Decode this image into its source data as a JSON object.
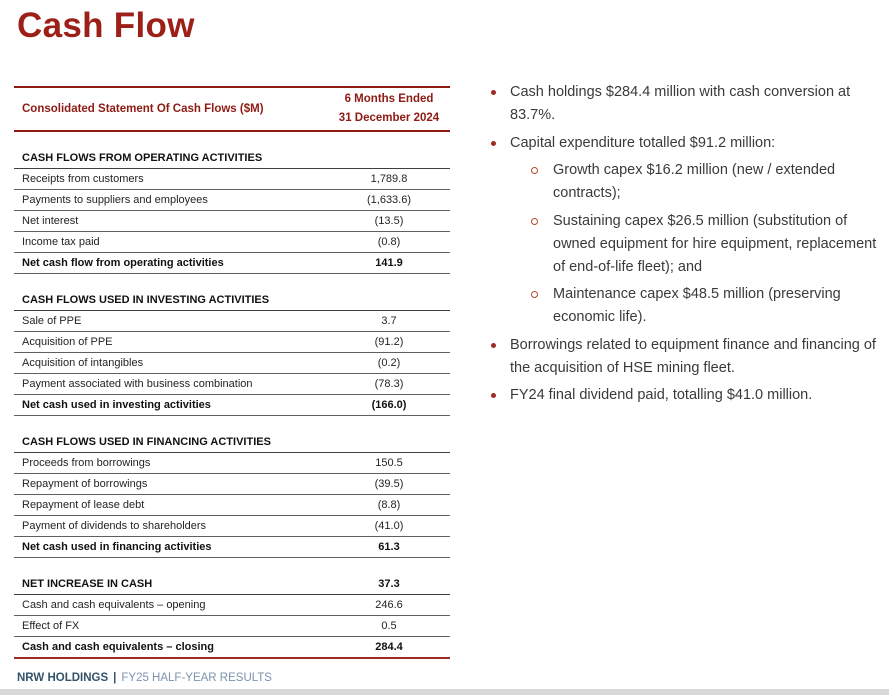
{
  "slide": {
    "title": "Cash Flow"
  },
  "table": {
    "header": {
      "label": "Consolidated Statement Of Cash Flows ($M)",
      "period_line1": "6 Months Ended",
      "period_line2": "31 December 2024"
    },
    "sections": [
      {
        "heading": "CASH FLOWS FROM OPERATING ACTIVITIES",
        "heading_value": "",
        "rows": [
          {
            "label": "Receipts from customers",
            "value": "1,789.8",
            "bold": false
          },
          {
            "label": "Payments to suppliers and employees",
            "value": "(1,633.6)",
            "bold": false
          },
          {
            "label": "Net interest",
            "value": "(13.5)",
            "bold": false
          },
          {
            "label": "Income tax paid",
            "value": "(0.8)",
            "bold": false
          },
          {
            "label": "Net cash flow from operating activities",
            "value": "141.9",
            "bold": true
          }
        ]
      },
      {
        "heading": "CASH FLOWS USED IN INVESTING ACTIVITIES",
        "heading_value": "",
        "rows": [
          {
            "label": "Sale of PPE",
            "value": "3.7",
            "bold": false
          },
          {
            "label": "Acquisition of PPE",
            "value": "(91.2)",
            "bold": false
          },
          {
            "label": "Acquisition of intangibles",
            "value": "(0.2)",
            "bold": false
          },
          {
            "label": "Payment associated with business combination",
            "value": "(78.3)",
            "bold": false
          },
          {
            "label": "Net cash used in investing activities",
            "value": "(166.0)",
            "bold": true
          }
        ]
      },
      {
        "heading": "CASH FLOWS USED IN FINANCING ACTIVITIES",
        "heading_value": "",
        "rows": [
          {
            "label": "Proceeds from borrowings",
            "value": "150.5",
            "bold": false
          },
          {
            "label": "Repayment of borrowings",
            "value": "(39.5)",
            "bold": false
          },
          {
            "label": "Repayment of lease debt",
            "value": "(8.8)",
            "bold": false
          },
          {
            "label": "Payment of dividends to shareholders",
            "value": "(41.0)",
            "bold": false
          },
          {
            "label": "Net cash used in financing activities",
            "value": "61.3",
            "bold": true
          }
        ]
      },
      {
        "heading": "NET INCREASE IN CASH",
        "heading_value": "37.3",
        "rows": [
          {
            "label": "Cash and cash equivalents – opening",
            "value": "246.6",
            "bold": false
          },
          {
            "label": "Effect of FX",
            "value": "0.5",
            "bold": false
          },
          {
            "label": "Cash and cash equivalents – closing",
            "value": "284.4",
            "bold": true
          }
        ]
      }
    ]
  },
  "bullets": [
    {
      "level": 1,
      "text": "Cash holdings $284.4 million with cash conversion at 83.7%."
    },
    {
      "level": 1,
      "text": "Capital expenditure totalled $91.2 million:"
    },
    {
      "level": 2,
      "text": "Growth capex $16.2 million (new / extended contracts);"
    },
    {
      "level": 2,
      "text": "Sustaining capex $26.5 million (substitution of owned equipment for hire equipment, replacement of end-of-life fleet); and"
    },
    {
      "level": 2,
      "text": "Maintenance capex $48.5 million (preserving economic life)."
    },
    {
      "level": 1,
      "text": "Borrowings related to equipment finance and financing of the acquisition of HSE mining fleet."
    },
    {
      "level": 1,
      "text": "FY24 final dividend paid, totalling $41.0 million."
    }
  ],
  "footer": {
    "brand": "NRW HOLDINGS",
    "separator": "|",
    "subtitle": "FY25 HALF-YEAR RESULTS"
  },
  "colors": {
    "title_red": "#9C2018",
    "table_maroon": "#8E1B13",
    "final_rule_red": "#9E2B25",
    "bullet_dot_red": "#9E2B25",
    "sub_bullet_ring_red": "#B6492C",
    "footer_brand_blue": "#33536B",
    "footer_subtitle_blue": "#7C93AD",
    "bottom_strip_gray": "#D8D8D8"
  }
}
